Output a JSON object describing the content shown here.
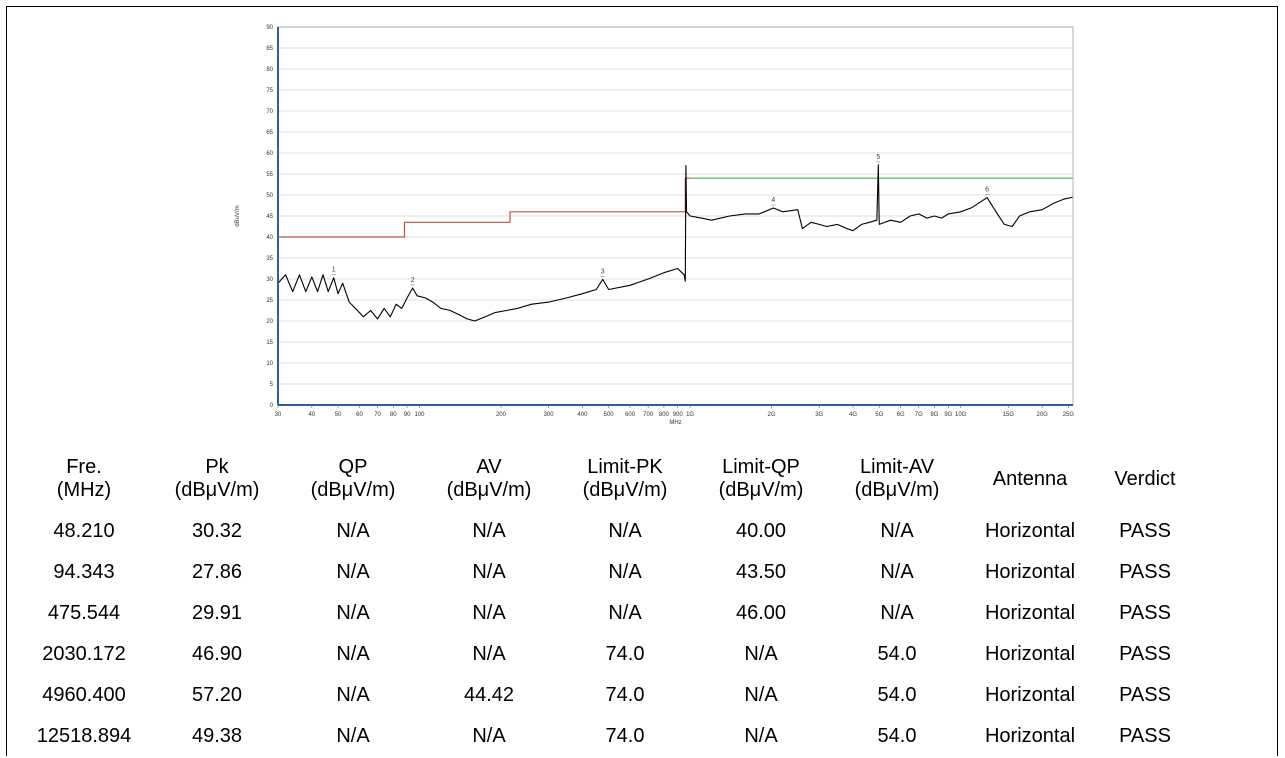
{
  "chart_data": {
    "type": "line",
    "xlabel": "MHz",
    "ylabel": "dBuV/m",
    "x_scale": "log",
    "xlim": [
      30,
      26000
    ],
    "ylim": [
      0,
      90
    ],
    "y_ticks": [
      0,
      5,
      10,
      15,
      20,
      25,
      30,
      35,
      40,
      45,
      50,
      55,
      60,
      65,
      70,
      75,
      80,
      85,
      90
    ],
    "x_ticks": [
      {
        "value": 30,
        "label": "30"
      },
      {
        "value": 40,
        "label": "40"
      },
      {
        "value": 50,
        "label": "50"
      },
      {
        "value": 60,
        "label": "60"
      },
      {
        "value": 70,
        "label": "70"
      },
      {
        "value": 80,
        "label": "80"
      },
      {
        "value": 90,
        "label": "90"
      },
      {
        "value": 100,
        "label": "100"
      },
      {
        "value": 200,
        "label": "200"
      },
      {
        "value": 300,
        "label": "300"
      },
      {
        "value": 400,
        "label": "400"
      },
      {
        "value": 500,
        "label": "500"
      },
      {
        "value": 600,
        "label": "600"
      },
      {
        "value": 700,
        "label": "700"
      },
      {
        "value": 800,
        "label": "800"
      },
      {
        "value": 900,
        "label": "900"
      },
      {
        "value": 1000,
        "label": "1G"
      },
      {
        "value": 2000,
        "label": "2G"
      },
      {
        "value": 3000,
        "label": "3G"
      },
      {
        "value": 4000,
        "label": "4G"
      },
      {
        "value": 5000,
        "label": "5G"
      },
      {
        "value": 6000,
        "label": "6G"
      },
      {
        "value": 7000,
        "label": "7G"
      },
      {
        "value": 8000,
        "label": "8G"
      },
      {
        "value": 9000,
        "label": "9G"
      },
      {
        "value": 10000,
        "label": "10G"
      },
      {
        "value": 15000,
        "label": "15G"
      },
      {
        "value": 20000,
        "label": "20G"
      },
      {
        "value": 25000,
        "label": "25G"
      }
    ],
    "grid": true,
    "series": [
      {
        "color": "#c0504d",
        "points": [
          [
            30,
            40
          ],
          [
            88,
            40
          ],
          [
            88,
            43.5
          ],
          [
            216,
            43.5
          ],
          [
            216,
            46
          ],
          [
            960,
            46
          ],
          [
            960,
            54
          ],
          [
            1000,
            54
          ]
        ]
      },
      {
        "color": "#4caf50",
        "points": [
          [
            1000,
            54
          ],
          [
            26000,
            54
          ]
        ]
      },
      {
        "color": "#000000",
        "points": [
          [
            30,
            29
          ],
          [
            32,
            31
          ],
          [
            34,
            27
          ],
          [
            36,
            31
          ],
          [
            38,
            27
          ],
          [
            40,
            30.5
          ],
          [
            42,
            27
          ],
          [
            44,
            31
          ],
          [
            46,
            27
          ],
          [
            48.21,
            30.3
          ],
          [
            50,
            26.5
          ],
          [
            52,
            29
          ],
          [
            55,
            24.5
          ],
          [
            58,
            23
          ],
          [
            62,
            21
          ],
          [
            66,
            22.5
          ],
          [
            70,
            20.5
          ],
          [
            74,
            23
          ],
          [
            78,
            21
          ],
          [
            82,
            24
          ],
          [
            86,
            23
          ],
          [
            90,
            25.5
          ],
          [
            94.343,
            27.86
          ],
          [
            98,
            26
          ],
          [
            105,
            25.5
          ],
          [
            112,
            24.5
          ],
          [
            120,
            23
          ],
          [
            130,
            22.5
          ],
          [
            140,
            21.5
          ],
          [
            150,
            20.5
          ],
          [
            160,
            20
          ],
          [
            175,
            21
          ],
          [
            190,
            22
          ],
          [
            210,
            22.5
          ],
          [
            230,
            23
          ],
          [
            260,
            24
          ],
          [
            300,
            24.5
          ],
          [
            350,
            25.5
          ],
          [
            400,
            26.5
          ],
          [
            450,
            27.5
          ],
          [
            475.544,
            29.91
          ],
          [
            500,
            27.5
          ],
          [
            600,
            28.5
          ],
          [
            700,
            30
          ],
          [
            800,
            31.5
          ],
          [
            900,
            32.5
          ],
          [
            950,
            31
          ],
          [
            960,
            29.5
          ],
          [
            965,
            57
          ],
          [
            970,
            46
          ],
          [
            1000,
            45
          ],
          [
            1100,
            44.5
          ],
          [
            1200,
            44
          ],
          [
            1400,
            45
          ],
          [
            1600,
            45.5
          ],
          [
            1800,
            45.5
          ],
          [
            2030.172,
            46.9
          ],
          [
            2200,
            46
          ],
          [
            2500,
            46.5
          ],
          [
            2600,
            42
          ],
          [
            2800,
            43.5
          ],
          [
            3000,
            43
          ],
          [
            3200,
            42.5
          ],
          [
            3500,
            43
          ],
          [
            3800,
            42
          ],
          [
            4000,
            41.5
          ],
          [
            4300,
            43
          ],
          [
            4600,
            43.5
          ],
          [
            4900,
            44
          ],
          [
            4960.4,
            57.2
          ],
          [
            5000,
            43
          ],
          [
            5500,
            44
          ],
          [
            6000,
            43.5
          ],
          [
            6500,
            45
          ],
          [
            7000,
            45.5
          ],
          [
            7500,
            44.5
          ],
          [
            8000,
            45
          ],
          [
            8500,
            44.5
          ],
          [
            9000,
            45.5
          ],
          [
            10000,
            46
          ],
          [
            11000,
            47
          ],
          [
            12518.894,
            49.38
          ],
          [
            13500,
            46
          ],
          [
            14500,
            43
          ],
          [
            15500,
            42.5
          ],
          [
            16500,
            45
          ],
          [
            18000,
            46
          ],
          [
            20000,
            46.5
          ],
          [
            22000,
            48
          ],
          [
            24000,
            49
          ],
          [
            26000,
            49.5
          ]
        ]
      }
    ],
    "markers": [
      {
        "label": "1",
        "x": 48.21,
        "y": 30.32
      },
      {
        "label": "2",
        "x": 94.343,
        "y": 27.86
      },
      {
        "label": "3",
        "x": 475.544,
        "y": 29.91
      },
      {
        "label": "4",
        "x": 2030.172,
        "y": 46.9
      },
      {
        "label": "5",
        "x": 4960.4,
        "y": 57.2
      },
      {
        "label": "6",
        "x": 12518.894,
        "y": 49.38
      }
    ]
  },
  "table": {
    "headers": [
      [
        "Fre.",
        "(MHz)"
      ],
      [
        "Pk",
        "(dBμV/m)"
      ],
      [
        "QP",
        "(dBμV/m)"
      ],
      [
        "AV",
        "(dBμV/m)"
      ],
      [
        "Limit-PK",
        "(dBμV/m)"
      ],
      [
        "Limit-QP",
        "(dBμV/m)"
      ],
      [
        "Limit-AV",
        "(dBμV/m)"
      ],
      [
        "Antenna",
        ""
      ],
      [
        "Verdict",
        ""
      ]
    ],
    "rows": [
      [
        "48.210",
        "30.32",
        "N/A",
        "N/A",
        "N/A",
        "40.00",
        "N/A",
        "Horizontal",
        "PASS"
      ],
      [
        "94.343",
        "27.86",
        "N/A",
        "N/A",
        "N/A",
        "43.50",
        "N/A",
        "Horizontal",
        "PASS"
      ],
      [
        "475.544",
        "29.91",
        "N/A",
        "N/A",
        "N/A",
        "46.00",
        "N/A",
        "Horizontal",
        "PASS"
      ],
      [
        "2030.172",
        "46.90",
        "N/A",
        "N/A",
        "74.0",
        "N/A",
        "54.0",
        "Horizontal",
        "PASS"
      ],
      [
        "4960.400",
        "57.20",
        "N/A",
        "44.42",
        "74.0",
        "N/A",
        "54.0",
        "Horizontal",
        "PASS"
      ],
      [
        "12518.894",
        "49.38",
        "N/A",
        "N/A",
        "74.0",
        "N/A",
        "54.0",
        "Horizontal",
        "PASS"
      ]
    ]
  }
}
